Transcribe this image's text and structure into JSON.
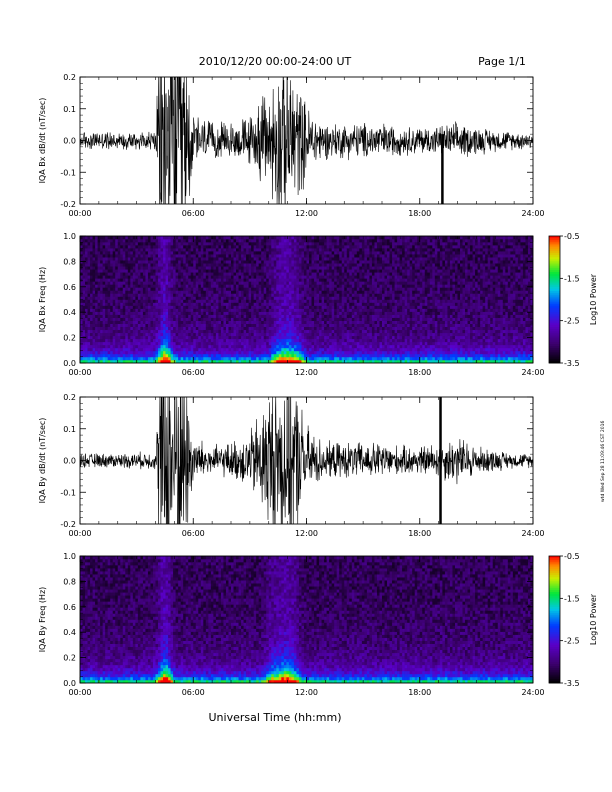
{
  "header": {
    "title": "2010/12/20   00:00-24:00 UT",
    "page": "Page 1/1"
  },
  "footer": {
    "xlabel": "Universal Time (hh:mm)",
    "side_stamp": "wtd Wed Sep 28 11:09:46 CST 2016"
  },
  "colors": {
    "trace": "#000000",
    "spectrogram_background": "#000000",
    "colorbar_low": "#000000",
    "colorbar_high": "#ff0000"
  },
  "chart_data": [
    {
      "type": "line",
      "ylabel": "IQA Bx dB/dt (nT/sec)",
      "xlim_hours": [
        0,
        24
      ],
      "x_ticks": [
        "00:00",
        "06:00",
        "12:00",
        "18:00",
        "24:00"
      ],
      "ylim": [
        -0.2,
        0.2
      ],
      "y_ticks": [
        "-0.2",
        "-0.1",
        "0.0",
        "0.1",
        "0.2"
      ],
      "envelope": {
        "x_hours": [
          0,
          2,
          4,
          4.3,
          5.0,
          5.5,
          6.0,
          7.0,
          8.0,
          9.0,
          10.0,
          10.5,
          11.0,
          11.5,
          12.0,
          13.0,
          14.0,
          15.0,
          16.0,
          17.0,
          18.0,
          19.0,
          20.0,
          21.0,
          22.0,
          23.0,
          24.0
        ],
        "amplitude": [
          0.025,
          0.025,
          0.03,
          0.35,
          0.35,
          0.3,
          0.08,
          0.05,
          0.05,
          0.07,
          0.15,
          0.22,
          0.25,
          0.18,
          0.1,
          0.05,
          0.05,
          0.05,
          0.05,
          0.04,
          0.04,
          0.04,
          0.05,
          0.04,
          0.03,
          0.025,
          0.025
        ]
      },
      "spikes": [
        {
          "x_hours": 19.2,
          "y_min": -0.2,
          "y_max": 0.02
        }
      ]
    },
    {
      "type": "heatmap",
      "ylabel": "IQA Bx Freq (Hz)",
      "xlim_hours": [
        0,
        24
      ],
      "x_ticks": [
        "00:00",
        "06:00",
        "12:00",
        "18:00",
        "24:00"
      ],
      "ylim": [
        0.0,
        1.0
      ],
      "y_ticks": [
        "0.0",
        "0.2",
        "0.4",
        "0.6",
        "0.8",
        "1.0"
      ],
      "colorbar": {
        "label": "Log10 Power",
        "range": [
          -3.5,
          -0.5
        ],
        "ticks": [
          "-0.5",
          "-1.5",
          "-2.5",
          "-3.5"
        ]
      },
      "activity_hours": [
        {
          "x_hours": 4.5,
          "strength": 1.0
        },
        {
          "x_hours": 10.5,
          "strength": 0.6
        },
        {
          "x_hours": 11.0,
          "strength": 0.7
        },
        {
          "x_hours": 11.5,
          "strength": 0.5
        }
      ]
    },
    {
      "type": "line",
      "ylabel": "IQA By dB/dt (nT/sec)",
      "xlim_hours": [
        0,
        24
      ],
      "x_ticks": [
        "00:00",
        "06:00",
        "12:00",
        "18:00",
        "24:00"
      ],
      "ylim": [
        -0.2,
        0.2
      ],
      "y_ticks": [
        "-0.2",
        "-0.1",
        "0.0",
        "0.1",
        "0.2"
      ],
      "envelope": {
        "x_hours": [
          0,
          2,
          4,
          4.3,
          5.0,
          5.5,
          6.0,
          7.0,
          8.0,
          9.0,
          10.0,
          10.5,
          11.0,
          11.5,
          12.0,
          13.0,
          14.0,
          15.0,
          16.0,
          17.0,
          18.0,
          19.0,
          20.0,
          21.0,
          22.0,
          23.0,
          24.0
        ],
        "amplitude": [
          0.02,
          0.02,
          0.025,
          0.35,
          0.35,
          0.3,
          0.07,
          0.04,
          0.05,
          0.08,
          0.2,
          0.25,
          0.28,
          0.2,
          0.1,
          0.05,
          0.05,
          0.05,
          0.05,
          0.04,
          0.04,
          0.05,
          0.07,
          0.04,
          0.03,
          0.02,
          0.02
        ]
      },
      "spikes": [
        {
          "x_hours": 19.1,
          "y_min": -0.2,
          "y_max": 0.2
        }
      ]
    },
    {
      "type": "heatmap",
      "ylabel": "IQA By Freq (Hz)",
      "xlim_hours": [
        0,
        24
      ],
      "x_ticks": [
        "00:00",
        "06:00",
        "12:00",
        "18:00",
        "24:00"
      ],
      "ylim": [
        0.0,
        1.0
      ],
      "y_ticks": [
        "0.0",
        "0.2",
        "0.4",
        "0.6",
        "0.8",
        "1.0"
      ],
      "colorbar": {
        "label": "Log10 Power",
        "range": [
          -3.5,
          -0.5
        ],
        "ticks": [
          "-0.5",
          "-1.5",
          "-2.5",
          "-3.5"
        ]
      },
      "activity_hours": [
        {
          "x_hours": 4.5,
          "strength": 1.0
        },
        {
          "x_hours": 10.2,
          "strength": 0.6
        },
        {
          "x_hours": 10.8,
          "strength": 0.8
        },
        {
          "x_hours": 11.3,
          "strength": 0.6
        }
      ]
    }
  ]
}
